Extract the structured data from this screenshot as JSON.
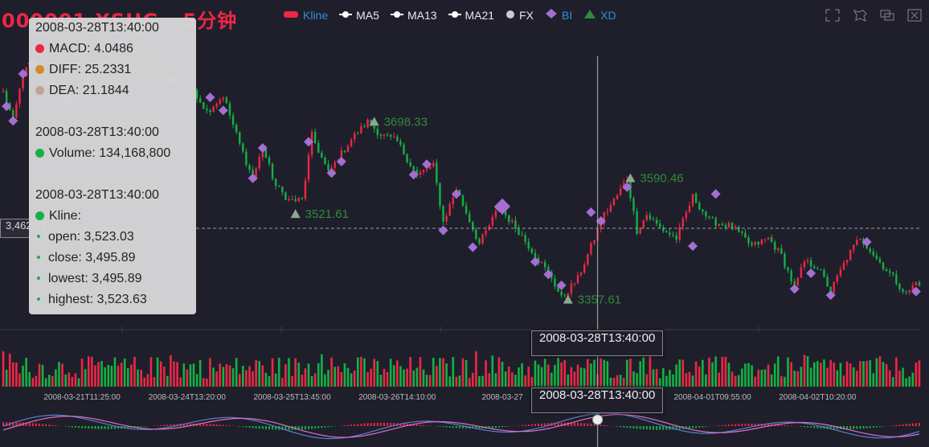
{
  "title": "000001.XSHG - 5分钟",
  "legend": [
    {
      "label": "Kline",
      "color": "#ec2745",
      "icon": "roundrect"
    },
    {
      "label": "MA5",
      "color": "#ffffff",
      "icon": "line-dot"
    },
    {
      "label": "MA13",
      "color": "#ffffff",
      "icon": "line-dot"
    },
    {
      "label": "MA21",
      "color": "#ffffff",
      "icon": "line-dot"
    },
    {
      "label": "FX",
      "color": "#cccccc",
      "icon": "circle"
    },
    {
      "label": "BI",
      "color": "#a36fd2",
      "icon": "diamond"
    },
    {
      "label": "XD",
      "color": "#2e8a3c",
      "icon": "triangle"
    }
  ],
  "toolbox": [
    "zoom-icon",
    "zoom-reset-icon",
    "restore-icon",
    "save-icon"
  ],
  "tooltip": {
    "macd_time": "2008-03-28T13:40:00",
    "macd": "MACD: 4.0486",
    "diff": "DIFF: 25.2331",
    "dea": "DEA: 21.1844",
    "volume_time": "2008-03-28T13:40:00",
    "volume": "Volume: 134,168,800",
    "kline_time": "2008-03-28T13:40:00",
    "kline": "Kline:",
    "open": "open: 3,523.03",
    "close": "close: 3,495.89",
    "lowest": "lowest: 3,495.89",
    "highest": "highest: 3,523.63"
  },
  "axis_pointer": {
    "price_label": "3,462.01",
    "time_label": "2008-03-28T13:40:00"
  },
  "colors": {
    "up": "#ec2745",
    "down": "#14b143",
    "bi": "#a36fd2",
    "xd": "#2e8a3c",
    "diff": "#5b7fd0",
    "dea": "#e070c8",
    "background": "#1f1f2b"
  },
  "chart_data": {
    "type": "candlestick",
    "xlabels": [
      "2008-03-21T11:25:00",
      "2008-03-24T13:20:00",
      "2008-03-25T13:45:00",
      "2008-03-26T14:10:00",
      "2008-03-27",
      "2008-04-01T09:55:00",
      "2008-04-02T10:20:00"
    ],
    "xlabel_index": [
      24,
      56,
      88,
      120,
      152,
      216,
      248
    ],
    "crosshair_index": 181,
    "price_range": [
      3300,
      3870
    ],
    "price_path": [
      [
        0,
        3755
      ],
      [
        3,
        3700
      ],
      [
        6,
        3790
      ],
      [
        9,
        3810
      ],
      [
        14,
        3770
      ],
      [
        20,
        3740
      ],
      [
        28,
        3800
      ],
      [
        36,
        3845
      ],
      [
        44,
        3812
      ],
      [
        52,
        3778
      ],
      [
        58,
        3760
      ],
      [
        62,
        3718
      ],
      [
        67,
        3748
      ],
      [
        72,
        3655
      ],
      [
        76,
        3589
      ],
      [
        79,
        3648
      ],
      [
        83,
        3575
      ],
      [
        87,
        3548
      ],
      [
        91,
        3548
      ],
      [
        94,
        3672
      ],
      [
        99,
        3600
      ],
      [
        106,
        3665
      ],
      [
        111,
        3698
      ],
      [
        115,
        3674
      ],
      [
        120,
        3660
      ],
      [
        126,
        3595
      ],
      [
        129,
        3608
      ],
      [
        131,
        3614
      ],
      [
        134,
        3506
      ],
      [
        138,
        3570
      ],
      [
        145,
        3464
      ],
      [
        151,
        3535
      ],
      [
        157,
        3488
      ],
      [
        163,
        3434
      ],
      [
        167,
        3400
      ],
      [
        170,
        3360
      ],
      [
        175,
        3398
      ],
      [
        183,
        3520
      ],
      [
        187,
        3557
      ],
      [
        190,
        3590
      ],
      [
        193,
        3490
      ],
      [
        196,
        3520
      ],
      [
        200,
        3495
      ],
      [
        205,
        3475
      ],
      [
        210,
        3555
      ],
      [
        215,
        3509
      ],
      [
        222,
        3497
      ],
      [
        228,
        3460
      ],
      [
        233,
        3475
      ],
      [
        237,
        3442
      ],
      [
        241,
        3380
      ],
      [
        244,
        3430
      ],
      [
        248,
        3420
      ],
      [
        252,
        3374
      ],
      [
        257,
        3438
      ],
      [
        261,
        3478
      ],
      [
        266,
        3436
      ],
      [
        271,
        3400
      ],
      [
        275,
        3368
      ],
      [
        278,
        3390
      ]
    ],
    "bi_points": [
      [
        1,
        3728
      ],
      [
        3,
        3700
      ],
      [
        6,
        3790
      ],
      [
        9,
        3810
      ],
      [
        14,
        3770
      ],
      [
        20,
        3740
      ],
      [
        28,
        3800
      ],
      [
        36,
        3845
      ],
      [
        52,
        3778
      ],
      [
        63,
        3745
      ],
      [
        67,
        3720
      ],
      [
        76,
        3590
      ],
      [
        79,
        3648
      ],
      [
        93,
        3660
      ],
      [
        100,
        3600
      ],
      [
        103,
        3622
      ],
      [
        125,
        3597
      ],
      [
        129,
        3617
      ],
      [
        134,
        3490
      ],
      [
        138,
        3560
      ],
      [
        143,
        3458
      ],
      [
        151,
        3535
      ],
      [
        162,
        3430
      ],
      [
        166,
        3406
      ],
      [
        170,
        3385
      ],
      [
        179,
        3525
      ],
      [
        182,
        3508
      ],
      [
        190,
        3573
      ],
      [
        210,
        3460
      ],
      [
        217,
        3560
      ],
      [
        263,
        3468
      ],
      [
        246,
        3408
      ],
      [
        241,
        3378
      ],
      [
        252,
        3366
      ],
      [
        278,
        3373
      ]
    ],
    "bi_big": [
      [
        152,
        3536
      ]
    ],
    "xd_points": [
      {
        "x": 113,
        "y": 3698.33,
        "label": "3698.33"
      },
      {
        "x": 89,
        "y": 3521.61,
        "label": "3521.61"
      },
      {
        "x": 172,
        "y": 3357.61,
        "label": "3357.61"
      },
      {
        "x": 191,
        "y": 3590.46,
        "label": "3590.46"
      }
    ],
    "count": 280
  }
}
